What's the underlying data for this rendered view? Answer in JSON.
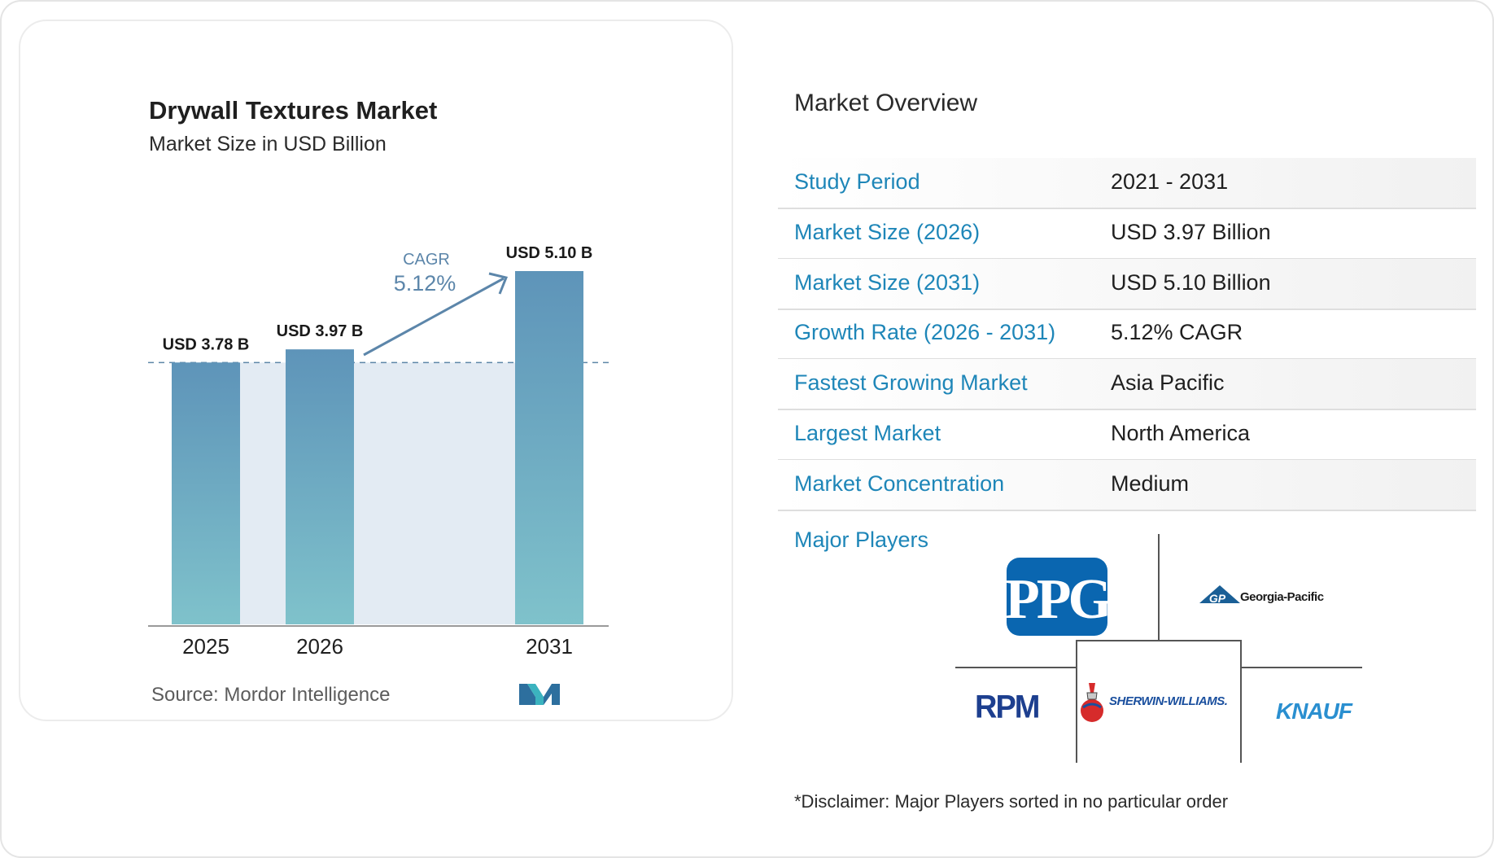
{
  "chart_data": {
    "type": "bar",
    "title": "Drywall Textures Market",
    "subtitle": "Market Size in USD Billion",
    "categories": [
      "2025",
      "2026",
      "2031"
    ],
    "values": [
      3.78,
      3.97,
      5.1
    ],
    "data_labels": [
      "USD 3.78 B",
      "USD 3.97 B",
      "USD 5.10 B"
    ],
    "ylim": [
      0,
      5.1
    ],
    "grid": false,
    "annotation": {
      "label": "CAGR",
      "value": "5.12%"
    },
    "colors": {
      "bar_top": "#5e94b9",
      "bar_bottom": "#7fc2cb",
      "band": "#e3ebf3",
      "reference_line": "#5e86a8",
      "annotation": "#5c86aa"
    }
  },
  "source": "Source:  Mordor Intelligence",
  "overview": {
    "title": "Market Overview",
    "rows": [
      {
        "label": "Study Period",
        "value": "2021 - 2031"
      },
      {
        "label": "Market Size (2026)",
        "value": "USD 3.97 Billion"
      },
      {
        "label": "Market Size (2031)",
        "value": "USD 5.10 Billion"
      },
      {
        "label": "Growth Rate (2026 - 2031)",
        "value": "5.12% CAGR"
      },
      {
        "label": "Fastest Growing Market",
        "value": "Asia Pacific"
      },
      {
        "label": "Largest Market",
        "value": "North America"
      },
      {
        "label": "Market Concentration",
        "value": "Medium"
      }
    ]
  },
  "players": {
    "title": "Major Players",
    "logos": {
      "ppg": "PPG",
      "georgia_pacific": "Georgia-Pacific",
      "gp_mark": "GP",
      "rpm": "RPM",
      "sherwin_williams": "SHERWIN-WILLIAMS.",
      "knauf": "KNAUF"
    }
  },
  "disclaimer": "*Disclaimer: Major Players sorted in no particular order",
  "colors": {
    "accent": "#1e86b8",
    "ppg_blue": "#0a66b0",
    "knauf_blue": "#2a8fd0",
    "rpm_navy": "#1d3f8f",
    "sw_blue": "#1a4f9e",
    "sw_red": "#d62b2b"
  }
}
